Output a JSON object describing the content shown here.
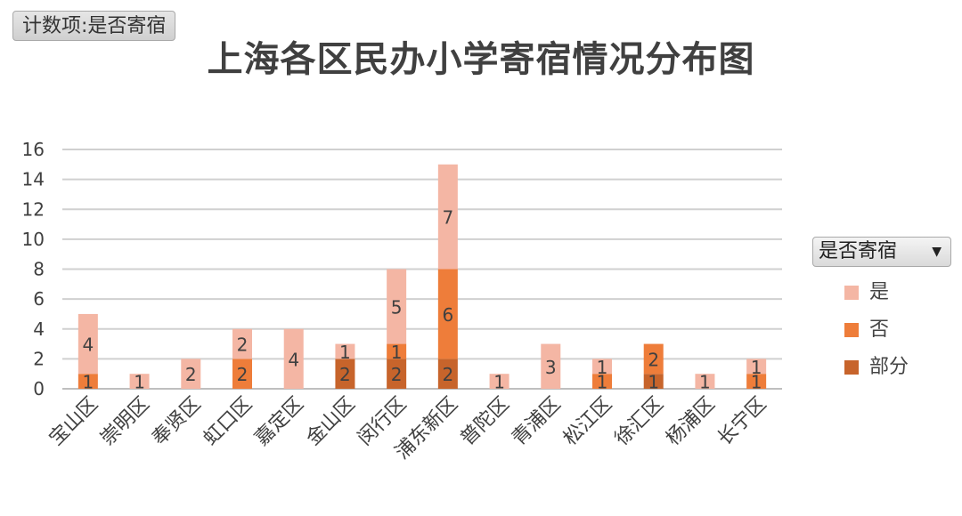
{
  "filter": {
    "label": "计数项:是否寄宿"
  },
  "legend": {
    "dropdown_label": "是否寄宿",
    "dropdown_arrow": "▼",
    "items": [
      {
        "name": "是",
        "color": "#f4b6a4"
      },
      {
        "name": "否",
        "color": "#ee7d3a"
      },
      {
        "name": "部分",
        "color": "#c7642b"
      }
    ]
  },
  "chart_data": {
    "type": "bar",
    "stacked": true,
    "title": "上海各区民办小学寄宿情况分布图",
    "xlabel": "",
    "ylabel": "",
    "ylim": [
      0,
      16
    ],
    "yticks": [
      0,
      2,
      4,
      6,
      8,
      10,
      12,
      14,
      16
    ],
    "grid": true,
    "legend_position": "right",
    "categories": [
      "宝山区",
      "崇明区",
      "奉贤区",
      "虹口区",
      "嘉定区",
      "金山区",
      "闵行区",
      "浦东新区",
      "普陀区",
      "青浦区",
      "松江区",
      "徐汇区",
      "杨浦区",
      "长宁区"
    ],
    "series": [
      {
        "name": "部分",
        "color": "#c7642b",
        "values": [
          null,
          null,
          null,
          null,
          null,
          2,
          2,
          2,
          null,
          null,
          null,
          1,
          null,
          null
        ]
      },
      {
        "name": "否",
        "color": "#ee7d3a",
        "values": [
          1,
          null,
          null,
          2,
          null,
          null,
          1,
          6,
          null,
          null,
          1,
          2,
          null,
          1
        ]
      },
      {
        "name": "是",
        "color": "#f4b6a4",
        "values": [
          4,
          1,
          2,
          2,
          4,
          1,
          5,
          7,
          1,
          3,
          1,
          null,
          1,
          1
        ]
      }
    ]
  }
}
